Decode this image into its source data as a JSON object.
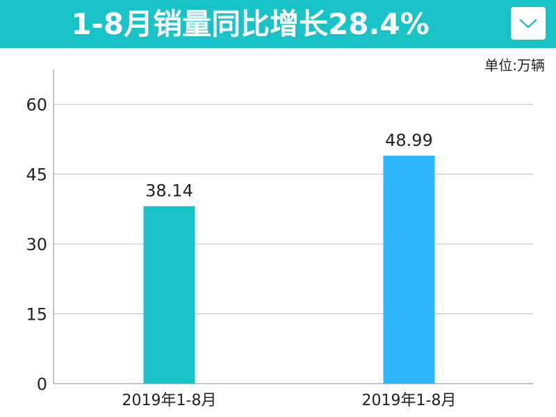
{
  "header": {
    "title": "1-8月销量同比增长28.4%"
  },
  "unit_label": "单位:万辆",
  "chart_data": {
    "type": "bar",
    "categories": [
      "2019年1-8月",
      "2019年1-8月"
    ],
    "values": [
      38.14,
      48.99
    ],
    "value_labels": [
      "38.14",
      "48.99"
    ],
    "bar_colors": [
      "#18c3c8",
      "#2eb7ff"
    ],
    "ylim": [
      0,
      67.5
    ],
    "yticks": [
      0,
      15,
      30,
      45,
      60
    ],
    "grid": true,
    "title": "",
    "xlabel": "",
    "ylabel": ""
  }
}
